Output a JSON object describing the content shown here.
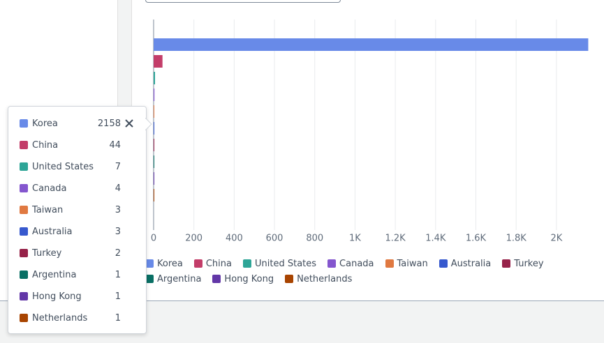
{
  "chart_data": {
    "type": "bar",
    "orientation": "horizontal",
    "categories": [
      null
    ],
    "series": [
      {
        "name": "Korea",
        "color": "#688ae8",
        "values": [
          2158
        ]
      },
      {
        "name": "China",
        "color": "#c33d69",
        "values": [
          44
        ]
      },
      {
        "name": "United States",
        "color": "#2ea597",
        "values": [
          7
        ]
      },
      {
        "name": "Canada",
        "color": "#8456ce",
        "values": [
          4
        ]
      },
      {
        "name": "Taiwan",
        "color": "#e07941",
        "values": [
          3
        ]
      },
      {
        "name": "Australia",
        "color": "#3759ce",
        "values": [
          3
        ]
      },
      {
        "name": "Turkey",
        "color": "#962249",
        "values": [
          2
        ]
      },
      {
        "name": "Argentina",
        "color": "#096f64",
        "values": [
          1
        ]
      },
      {
        "name": "Hong Kong",
        "color": "#6237a7",
        "values": [
          1
        ]
      },
      {
        "name": "Netherlands",
        "color": "#a84401",
        "values": [
          1
        ]
      }
    ],
    "xlim": [
      0,
      2160
    ],
    "xticks": [
      0,
      200,
      400,
      600,
      800,
      {
        "value": 1000,
        "label": "1K"
      },
      {
        "value": 1200,
        "label": "1.2K"
      },
      {
        "value": 1400,
        "label": "1.4K"
      },
      {
        "value": 1600,
        "label": "1.6K"
      },
      {
        "value": 1800,
        "label": "1.8K"
      },
      {
        "value": 2000,
        "label": "2K"
      }
    ],
    "grid": true
  }
}
